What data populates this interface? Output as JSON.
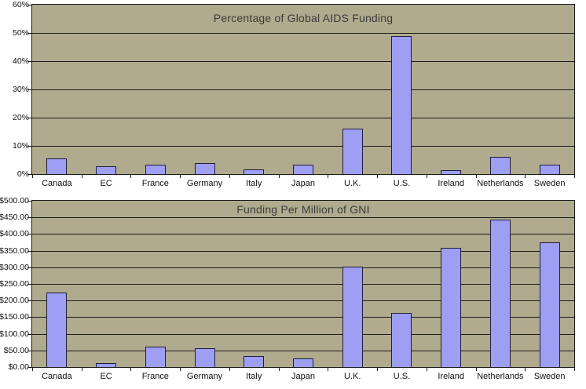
{
  "colors": {
    "page_bg": "#ffffff",
    "plot_bg": "#b0ab8e",
    "bar_fill": "#9e9ef2",
    "bar_border": "#1e1e3c",
    "gridline": "#1a1a1a",
    "label_text": "#111111",
    "title_text": "#3a3a3a"
  },
  "chart_data": [
    {
      "type": "bar",
      "title": "Percentage of Global AIDS Funding",
      "categories": [
        "Canada",
        "EC",
        "France",
        "Germany",
        "Italy",
        "Japan",
        "U.K.",
        "U.S.",
        "Ireland",
        "Netherlands",
        "Sweden"
      ],
      "values": [
        5.5,
        2.8,
        3.4,
        3.8,
        1.7,
        3.4,
        16,
        49,
        1.3,
        6.2,
        3.3
      ],
      "xlabel": "",
      "ylabel": "",
      "ylim": [
        0,
        60
      ],
      "y_tick_labels": [
        "0%",
        "10%",
        "20%",
        "30%",
        "40%",
        "50%",
        "60%"
      ],
      "grid": true,
      "legend": false
    },
    {
      "type": "bar",
      "title": "Funding Per Million of GNI",
      "categories": [
        "Canada",
        "EC",
        "France",
        "Germany",
        "Italy",
        "Japan",
        "U.K.",
        "U.S.",
        "Ireland",
        "Netherlands",
        "Sweden"
      ],
      "values": [
        224,
        11,
        61,
        57,
        34,
        26,
        303,
        162,
        359,
        443,
        375
      ],
      "xlabel": "",
      "ylabel": "",
      "ylim": [
        0,
        500
      ],
      "y_tick_labels": [
        "$0.00",
        "$50.00",
        "$100.00",
        "$150.00",
        "$200.00",
        "$250.00",
        "$300.00",
        "$350.00",
        "$400.00",
        "$450.00",
        "$500.00"
      ],
      "grid": true,
      "legend": false
    }
  ]
}
